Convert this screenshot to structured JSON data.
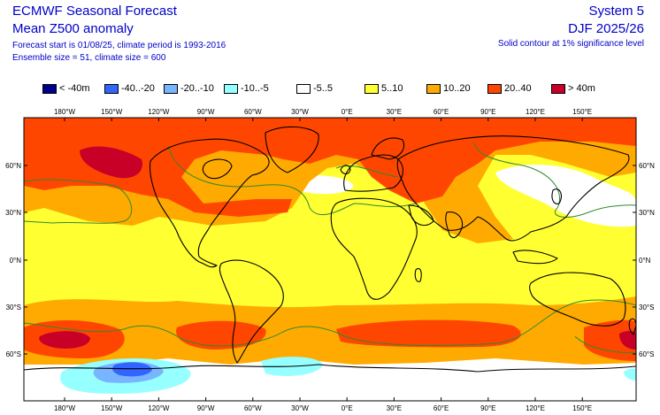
{
  "header": {
    "title": "ECMWF Seasonal Forecast",
    "subtitle": "Mean Z500 anomaly",
    "line3": "Forecast start is 01/08/25, climate period is 1993-2016",
    "line4": "Ensemble size = 51, climate size = 600",
    "system": "System 5",
    "period": "DJF 2025/26",
    "note": "Solid contour at 1% significance level"
  },
  "legend": [
    {
      "label": "< -40m",
      "color": "#00008c"
    },
    {
      "label": "-40..-20",
      "color": "#3264ff"
    },
    {
      "label": "-20..-10",
      "color": "#78b4ff"
    },
    {
      "label": "-10..-5",
      "color": "#96ffff"
    },
    {
      "label": "-5..5",
      "color": "#ffffff"
    },
    {
      "label": "5..10",
      "color": "#ffff32"
    },
    {
      "label": "10..20",
      "color": "#ffaa00"
    },
    {
      "label": "20..40",
      "color": "#ff4600"
    },
    {
      "label": "> 40m",
      "color": "#c80028"
    }
  ],
  "axes": {
    "lon_labels": [
      "180°W",
      "150°W",
      "120°W",
      "90°W",
      "60°W",
      "30°W",
      "0°E",
      "30°E",
      "60°E",
      "90°E",
      "120°E",
      "150°E"
    ],
    "lat_labels": [
      "60°N",
      "30°N",
      "0°N",
      "30°S",
      "60°S"
    ]
  },
  "colors": {
    "white": "#ffffff",
    "yellow": "#ffff32",
    "orange": "#ffaa00",
    "red": "#ff4600",
    "darkred": "#c80028",
    "cyan": "#96ffff",
    "lightblue": "#78b4ff",
    "blue": "#3264ff",
    "significance": "#2e8b2e"
  }
}
